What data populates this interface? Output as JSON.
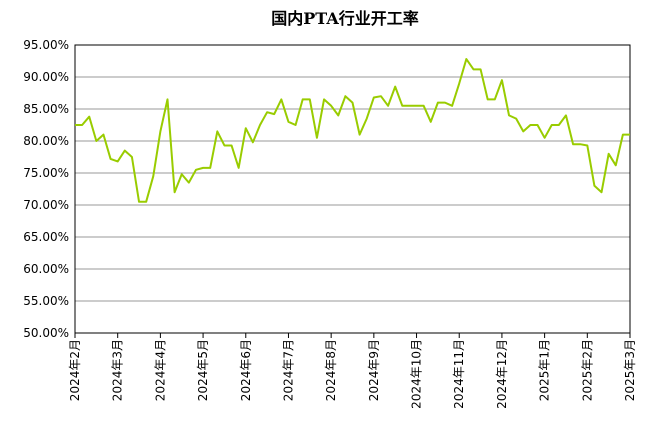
{
  "chart_data": {
    "type": "line",
    "title": "国内PTA行业开工率",
    "categories": [
      "2024年2月",
      null,
      null,
      null,
      null,
      null,
      "2024年3月",
      null,
      null,
      null,
      null,
      null,
      "2024年4月",
      null,
      null,
      null,
      null,
      null,
      "2024年5月",
      null,
      null,
      null,
      null,
      null,
      "2024年6月",
      null,
      null,
      null,
      null,
      null,
      "2024年7月",
      null,
      null,
      null,
      null,
      null,
      "2024年8月",
      null,
      null,
      null,
      null,
      null,
      "2024年9月",
      null,
      null,
      null,
      null,
      null,
      "2024年10月",
      null,
      null,
      null,
      null,
      null,
      "2024年11月",
      null,
      null,
      null,
      null,
      null,
      "2024年12月",
      null,
      null,
      null,
      null,
      null,
      "2025年1月",
      null,
      null,
      null,
      null,
      null,
      "2025年2月",
      null,
      null,
      null,
      null,
      null,
      "2025年3月"
    ],
    "series": [
      {
        "color": "#99cc00",
        "values": [
          82.5,
          82.5,
          83.8,
          80,
          81,
          77.2,
          76.8,
          78.5,
          77.5,
          70.5,
          70.5,
          74.5,
          81.5,
          86.5,
          72,
          74.8,
          73.5,
          75.5,
          75.8,
          75.8,
          81.5,
          79.3,
          79.3,
          75.8,
          82,
          79.8,
          82.5,
          84.5,
          84.2,
          86.5,
          83,
          82.5,
          86.5,
          86.5,
          80.5,
          86.5,
          85.5,
          84,
          87,
          86,
          81,
          83.5,
          86.8,
          87,
          85.5,
          88.5,
          85.5,
          85.5,
          85.5,
          85.5,
          83,
          86,
          86,
          85.5,
          89,
          92.8,
          91.2,
          91.2,
          86.5,
          86.5,
          89.5,
          84,
          83.5,
          81.5,
          82.5,
          82.5,
          80.5,
          82.5,
          82.5,
          84,
          79.5,
          79.5,
          79.3,
          73,
          72,
          78,
          76.2,
          81,
          81
        ]
      }
    ],
    "ylim": [
      50,
      95
    ],
    "yticks": [
      {
        "value": 50,
        "label": "50.00%"
      },
      {
        "value": 55,
        "label": "55.00%"
      },
      {
        "value": 60,
        "label": "60.00%"
      },
      {
        "value": 65,
        "label": "65.00%"
      },
      {
        "value": 70,
        "label": "70.00%"
      },
      {
        "value": 75,
        "label": "75.00%"
      },
      {
        "value": 80,
        "label": "80.00%"
      },
      {
        "value": 85,
        "label": "85.00%"
      },
      {
        "value": 90,
        "label": "90.00%"
      },
      {
        "value": 95,
        "label": "95.00%"
      }
    ],
    "grid": true
  }
}
